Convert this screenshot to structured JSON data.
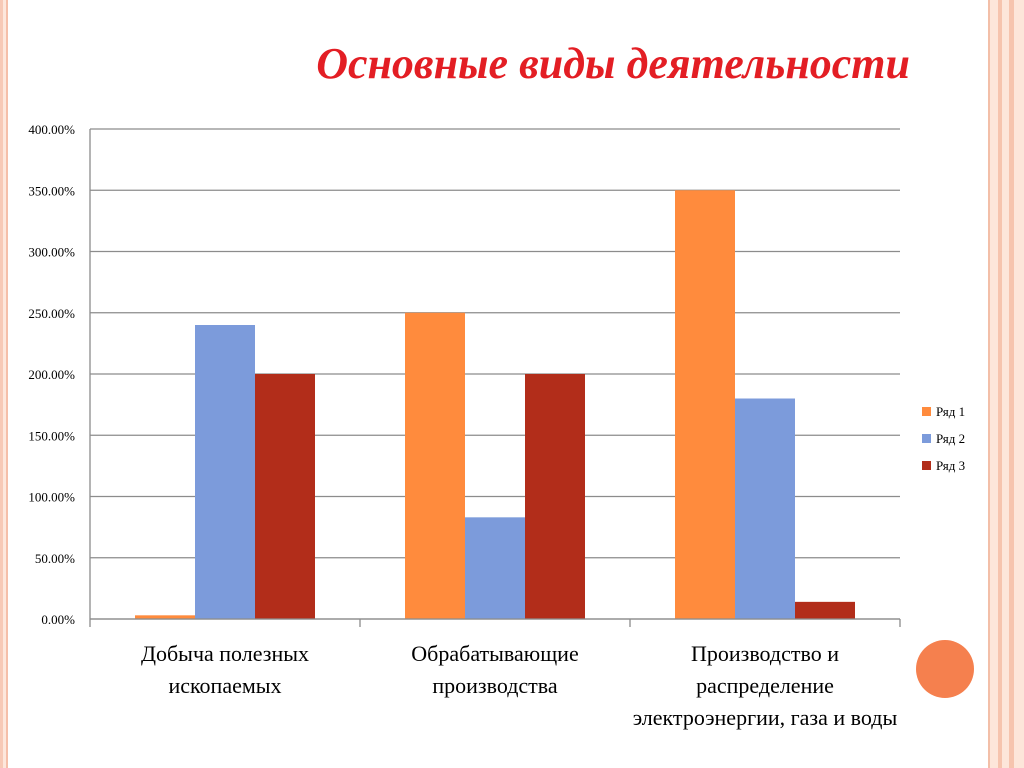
{
  "slide": {
    "title": "Основные виды деятельности"
  },
  "colors": {
    "series1": "#ff8b3d",
    "series2": "#7c9bdb",
    "series3": "#b22d1a",
    "title": "#e31e24",
    "accent_circle": "#f5804e"
  },
  "chart_data": {
    "type": "bar",
    "categories": [
      "Добыча полезных ископаемых",
      "Обрабатывающие производства",
      "Производство и распределение электроэнергии,  газа и воды"
    ],
    "series": [
      {
        "name": "Ряд 1",
        "values": [
          3,
          250,
          350
        ]
      },
      {
        "name": "Ряд 2",
        "values": [
          240,
          83,
          180
        ]
      },
      {
        "name": "Ряд 3",
        "values": [
          200,
          200,
          14
        ]
      }
    ],
    "y_ticks": [
      "0.00%",
      "50.00%",
      "100.00%",
      "150.00%",
      "200.00%",
      "250.00%",
      "300.00%",
      "350.00%",
      "400.00%"
    ],
    "ylim": [
      0,
      400
    ],
    "grid": true,
    "legend": "right"
  }
}
